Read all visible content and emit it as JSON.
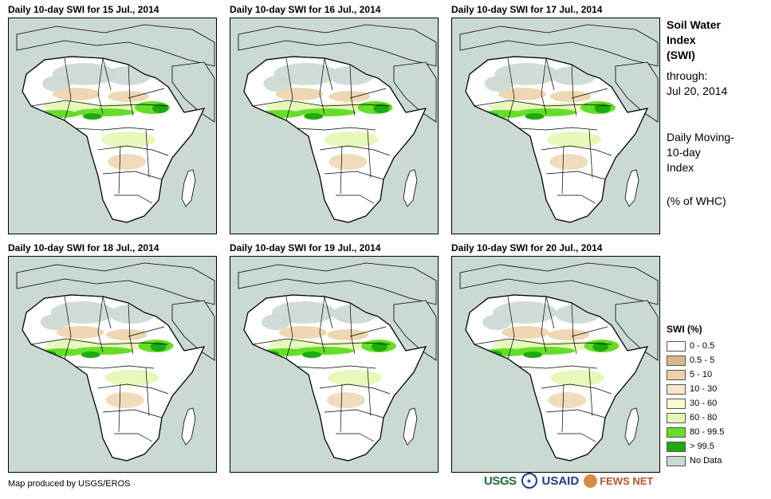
{
  "panels": [
    {
      "title": "Daily 10-day SWI for 15 Jul., 2014"
    },
    {
      "title": "Daily 10-day SWI for 16 Jul., 2014"
    },
    {
      "title": "Daily 10-day SWI for 17 Jul., 2014"
    },
    {
      "title": "Daily 10-day SWI for 18 Jul., 2014"
    },
    {
      "title": "Daily 10-day SWI for 19 Jul., 2014"
    },
    {
      "title": "Daily 10-day SWI for 20 Jul., 2014"
    }
  ],
  "side": {
    "title_line1": "Soil Water",
    "title_line2": "Index",
    "title_line3": "(SWI)",
    "through_label": "through:",
    "through_date": "Jul 20, 2014",
    "desc_line1": "Daily Moving-",
    "desc_line2": "10-day",
    "desc_line3": "Index",
    "units": "(% of WHC)"
  },
  "legend": {
    "title": "SWI (%)",
    "items": [
      {
        "label": "0 - 0.5",
        "color": "#ffffff"
      },
      {
        "label": "0.5 - 5",
        "color": "#d8b98a"
      },
      {
        "label": "5 - 10",
        "color": "#ecd3ab"
      },
      {
        "label": "10 - 30",
        "color": "#f7e6c8"
      },
      {
        "label": "30 - 60",
        "color": "#fbf9d2"
      },
      {
        "label": "60 - 80",
        "color": "#e4f7b4"
      },
      {
        "label": "80 - 99.5",
        "color": "#66dd2a"
      },
      {
        "label": "> 99.5",
        "color": "#1faa10"
      },
      {
        "label": "No Data",
        "color": "#cbd9d3"
      }
    ]
  },
  "colors": {
    "sea": "#cbd9d3",
    "land": "#ffffff",
    "desert": "#cbd9d3",
    "dry": "#ecd3ab",
    "moist": "#e4f7b4",
    "wet": "#66dd2a",
    "saturated": "#1faa10"
  },
  "credit": "Map produced by USGS/EROS",
  "logos": {
    "usgs": "USGS",
    "usaid": "USAID",
    "fews": "FEWS NET"
  }
}
